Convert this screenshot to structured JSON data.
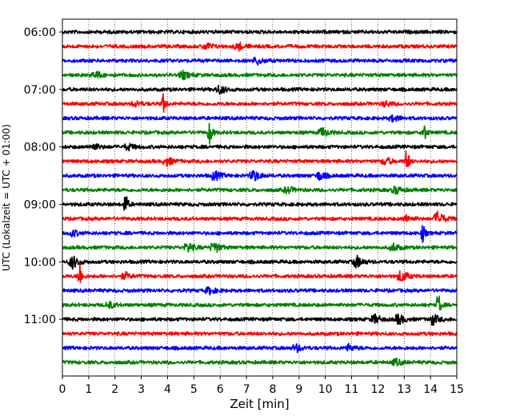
{
  "chart_data": {
    "type": "line",
    "xlabel": "Zeit  [min]",
    "ylabel": "UTC (Lokalzeit = UTC + 01:00)",
    "xlim": [
      0,
      15
    ],
    "x_ticks": [
      "0",
      "1",
      "2",
      "3",
      "4",
      "5",
      "6",
      "7",
      "8",
      "9",
      "10",
      "11",
      "12",
      "13",
      "14",
      "15"
    ],
    "y_ticks": [
      "06:00",
      "07:00",
      "08:00",
      "09:00",
      "10:00",
      "11:00"
    ],
    "trace_interval_minutes": 15,
    "start_time": "06:00",
    "colors": [
      "#000000",
      "#ff0000",
      "#0000ff",
      "#008000"
    ],
    "grid": "vertical dotted",
    "traces": [
      {
        "time": "06:00",
        "color": "#000000",
        "events": []
      },
      {
        "time": "06:15",
        "color": "#ff0000",
        "events": [
          {
            "t": 5.5,
            "amp": 0.3
          },
          {
            "t": 6.7,
            "amp": 0.35
          }
        ]
      },
      {
        "time": "06:30",
        "color": "#0000ff",
        "events": [
          {
            "t": 7.4,
            "amp": 0.35
          }
        ]
      },
      {
        "time": "06:45",
        "color": "#008000",
        "events": [
          {
            "t": 1.3,
            "amp": 0.3
          },
          {
            "t": 4.6,
            "amp": 0.35
          }
        ]
      },
      {
        "time": "07:00",
        "color": "#000000",
        "events": [
          {
            "t": 6.0,
            "amp": 0.4
          }
        ]
      },
      {
        "time": "07:15",
        "color": "#ff0000",
        "events": [
          {
            "t": 3.85,
            "amp": 1.0
          },
          {
            "t": 2.8,
            "amp": 0.25
          },
          {
            "t": 12.3,
            "amp": 0.25
          }
        ]
      },
      {
        "time": "07:30",
        "color": "#0000ff",
        "events": [
          {
            "t": 12.6,
            "amp": 0.3
          }
        ]
      },
      {
        "time": "07:45",
        "color": "#008000",
        "events": [
          {
            "t": 5.6,
            "amp": 1.2
          },
          {
            "t": 9.9,
            "amp": 0.45
          },
          {
            "t": 13.75,
            "amp": 1.0
          }
        ]
      },
      {
        "time": "08:00",
        "color": "#000000",
        "events": [
          {
            "t": 1.2,
            "amp": 0.3
          },
          {
            "t": 2.5,
            "amp": 0.3
          }
        ]
      },
      {
        "time": "08:15",
        "color": "#ff0000",
        "events": [
          {
            "t": 4.0,
            "amp": 0.4
          },
          {
            "t": 12.3,
            "amp": 0.35
          },
          {
            "t": 13.1,
            "amp": 1.4
          }
        ]
      },
      {
        "time": "08:30",
        "color": "#0000ff",
        "events": [
          {
            "t": 5.8,
            "amp": 0.45
          },
          {
            "t": 7.3,
            "amp": 0.5
          },
          {
            "t": 9.8,
            "amp": 0.4
          }
        ]
      },
      {
        "time": "08:45",
        "color": "#008000",
        "events": [
          {
            "t": 8.6,
            "amp": 0.3
          },
          {
            "t": 12.7,
            "amp": 0.35
          }
        ]
      },
      {
        "time": "09:00",
        "color": "#000000",
        "events": [
          {
            "t": 2.4,
            "amp": 1.2
          }
        ]
      },
      {
        "time": "09:15",
        "color": "#ff0000",
        "events": [
          {
            "t": 13.1,
            "amp": 0.3
          },
          {
            "t": 14.3,
            "amp": 0.7
          }
        ]
      },
      {
        "time": "09:30",
        "color": "#0000ff",
        "events": [
          {
            "t": 0.4,
            "amp": 0.3
          },
          {
            "t": 13.7,
            "amp": 1.0
          }
        ]
      },
      {
        "time": "09:45",
        "color": "#008000",
        "events": [
          {
            "t": 4.8,
            "amp": 0.45
          },
          {
            "t": 5.8,
            "amp": 0.5
          },
          {
            "t": 12.6,
            "amp": 0.35
          }
        ]
      },
      {
        "time": "10:00",
        "color": "#000000",
        "events": [
          {
            "t": 0.4,
            "amp": 0.6
          },
          {
            "t": 11.2,
            "amp": 0.55
          }
        ]
      },
      {
        "time": "10:15",
        "color": "#ff0000",
        "events": [
          {
            "t": 0.65,
            "amp": 1.6
          },
          {
            "t": 2.4,
            "amp": 0.3
          },
          {
            "t": 12.9,
            "amp": 0.55
          }
        ]
      },
      {
        "time": "10:30",
        "color": "#0000ff",
        "events": [
          {
            "t": 5.6,
            "amp": 0.3
          }
        ]
      },
      {
        "time": "10:45",
        "color": "#008000",
        "events": [
          {
            "t": 1.8,
            "amp": 0.3
          },
          {
            "t": 14.3,
            "amp": 1.3
          }
        ]
      },
      {
        "time": "11:00",
        "color": "#000000",
        "events": [
          {
            "t": 11.9,
            "amp": 0.4
          },
          {
            "t": 12.8,
            "amp": 0.5
          },
          {
            "t": 14.1,
            "amp": 0.5
          }
        ]
      },
      {
        "time": "11:15",
        "color": "#ff0000",
        "events": []
      },
      {
        "time": "11:30",
        "color": "#0000ff",
        "events": [
          {
            "t": 8.9,
            "amp": 0.35
          },
          {
            "t": 10.9,
            "amp": 0.3
          }
        ]
      },
      {
        "time": "11:45",
        "color": "#008000",
        "events": [
          {
            "t": 12.7,
            "amp": 0.3
          }
        ]
      }
    ]
  }
}
